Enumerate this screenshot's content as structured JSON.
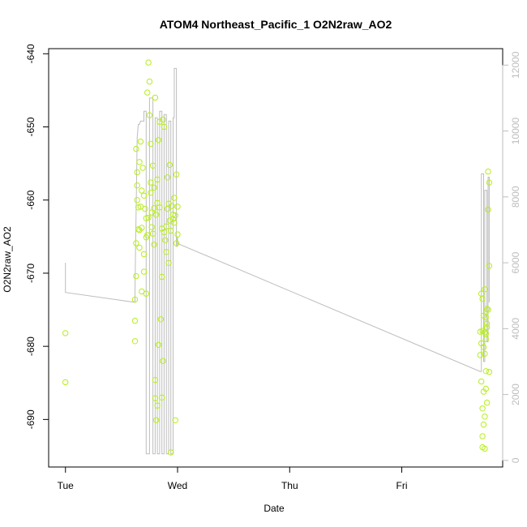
{
  "chart_data": {
    "type": "scatter",
    "title": "ATOM4 Northeast_Pacific_1 O2N2raw_AO2",
    "xlabel": "Date",
    "ylabel": "O2N2raw_AO2",
    "x_ticks": [
      "Tue",
      "Wed",
      "Thu",
      "Fri"
    ],
    "x_tick_values": [
      0,
      1,
      2,
      3
    ],
    "xlim": [
      -0.15,
      3.9
    ],
    "ylim": [
      -696.5,
      -639.3
    ],
    "y_ticks": [
      -640,
      -650,
      -660,
      -670,
      -680,
      -690
    ],
    "y2lim": [
      -200,
      12500
    ],
    "y2_ticks": [
      0,
      2000,
      4000,
      6000,
      8000,
      10000,
      12000
    ],
    "colors": {
      "points": "#b7ee1a",
      "line": "#bdbdbd",
      "frame": "#000000",
      "right_axis": "#bdbdbd"
    },
    "series": [
      {
        "kind": "points",
        "x": [
          0.0,
          0.0,
          0.62,
          0.62,
          0.62,
          0.63,
          0.63,
          0.63,
          0.64,
          0.64,
          0.65,
          0.65,
          0.66,
          0.66,
          0.67,
          0.67,
          0.68,
          0.68,
          0.69,
          0.7,
          0.7,
          0.71,
          0.72,
          0.72,
          0.73,
          0.73,
          0.74,
          0.75,
          0.75,
          0.76,
          0.76,
          0.77,
          0.78,
          0.78,
          0.79,
          0.79,
          0.8,
          0.8,
          0.81,
          0.81,
          0.82,
          0.82,
          0.83,
          0.84,
          0.85,
          0.86,
          0.86,
          0.87,
          0.88,
          0.89,
          0.9,
          0.91,
          0.92,
          0.93,
          0.94,
          0.95,
          0.96,
          0.97,
          0.98,
          0.99,
          1.0,
          1.0,
          0.66,
          0.7,
          0.74,
          0.77,
          0.8,
          0.84,
          0.88,
          0.9,
          0.92,
          0.96,
          0.68,
          0.72,
          0.76,
          0.82,
          0.86,
          0.94,
          0.98,
          0.64,
          0.79,
          0.83,
          0.87,
          0.91,
          0.93,
          0.97,
          0.99,
          3.7,
          3.7,
          3.71,
          3.71,
          3.72,
          3.72,
          3.72,
          3.73,
          3.73,
          3.73,
          3.74,
          3.74,
          3.74,
          3.75,
          3.75,
          3.75,
          3.76,
          3.76,
          3.76,
          3.77,
          3.77,
          3.78,
          3.78,
          3.78,
          3.72,
          3.73,
          3.74,
          3.75,
          3.76,
          3.71,
          3.74,
          3.77,
          3.72,
          3.75
        ],
        "y": [
          -678.2,
          -684.9,
          -679.3,
          -676.5,
          -673.6,
          -670.4,
          -653.0,
          -665.9,
          -660.0,
          -656.2,
          -661.0,
          -664.0,
          -666.5,
          -654.8,
          -652.0,
          -660.9,
          -658.7,
          -663.8,
          -655.6,
          -669.8,
          -659.4,
          -661.2,
          -665.1,
          -662.5,
          -645.3,
          -664.8,
          -641.2,
          -643.8,
          -648.4,
          -652.3,
          -659.0,
          -661.7,
          -664.6,
          -655.3,
          -658.3,
          -666.1,
          -684.6,
          -687.1,
          -662.0,
          -690.1,
          -660.4,
          -657.2,
          -679.8,
          -661.0,
          -676.3,
          -663.9,
          -670.5,
          -682.0,
          -664.4,
          -665.5,
          -663.6,
          -661.2,
          -660.5,
          -662.8,
          -664.2,
          -660.8,
          -662.6,
          -663.1,
          -662.1,
          -665.9,
          -660.9,
          -664.7,
          -664.1,
          -667.4,
          -662.4,
          -663.7,
          -646.0,
          -649.3,
          -650.0,
          -667.1,
          -668.6,
          -662.0,
          -672.5,
          -672.8,
          -657.6,
          -688.1,
          -687.0,
          -694.5,
          -690.1,
          -658.0,
          -661.1,
          -651.8,
          -649.0,
          -656.9,
          -655.2,
          -659.7,
          -656.5,
          -681.2,
          -678.0,
          -672.8,
          -684.8,
          -677.9,
          -688.5,
          -692.3,
          -690.7,
          -686.2,
          -680.1,
          -694.0,
          -689.6,
          -678.1,
          -683.4,
          -685.8,
          -679.0,
          -687.7,
          -676.9,
          -674.9,
          -661.3,
          -656.1,
          -657.6,
          -669.0,
          -683.5,
          -673.5,
          -675.8,
          -672.2,
          -678.3,
          -677.4,
          -679.6,
          -681.0,
          -675.0,
          -693.8,
          -676.0
        ]
      },
      {
        "kind": "line",
        "x": [
          0.0,
          0.0,
          0.62,
          0.62,
          0.64,
          0.65,
          0.66,
          0.67,
          0.7,
          0.7,
          0.72,
          0.72,
          0.75,
          0.75,
          0.78,
          0.78,
          0.8,
          0.8,
          0.82,
          0.82,
          0.84,
          0.84,
          0.86,
          0.86,
          0.88,
          0.88,
          0.9,
          0.9,
          0.92,
          0.92,
          0.94,
          0.94,
          0.96,
          0.96,
          0.97,
          0.97,
          0.99,
          0.99,
          1.0,
          1.0,
          0.99,
          3.7,
          3.71,
          3.71,
          3.73,
          3.73,
          3.74,
          3.74,
          3.76,
          3.76,
          3.77,
          3.77,
          3.78,
          3.78
        ],
        "y": [
          6000,
          5100,
          4800,
          5200,
          9800,
          10200,
          10200,
          10300,
          10300,
          10600,
          10600,
          200,
          200,
          11000,
          11000,
          200,
          200,
          10400,
          10400,
          200,
          200,
          10600,
          10600,
          200,
          200,
          10500,
          10500,
          200,
          200,
          10300,
          10300,
          200,
          200,
          10400,
          10400,
          11900,
          11900,
          6500,
          6500,
          6800,
          6600,
          2700,
          2700,
          8700,
          8700,
          3000,
          3000,
          8200,
          8200,
          3600,
          3600,
          8600,
          8600,
          4800
        ]
      }
    ]
  }
}
